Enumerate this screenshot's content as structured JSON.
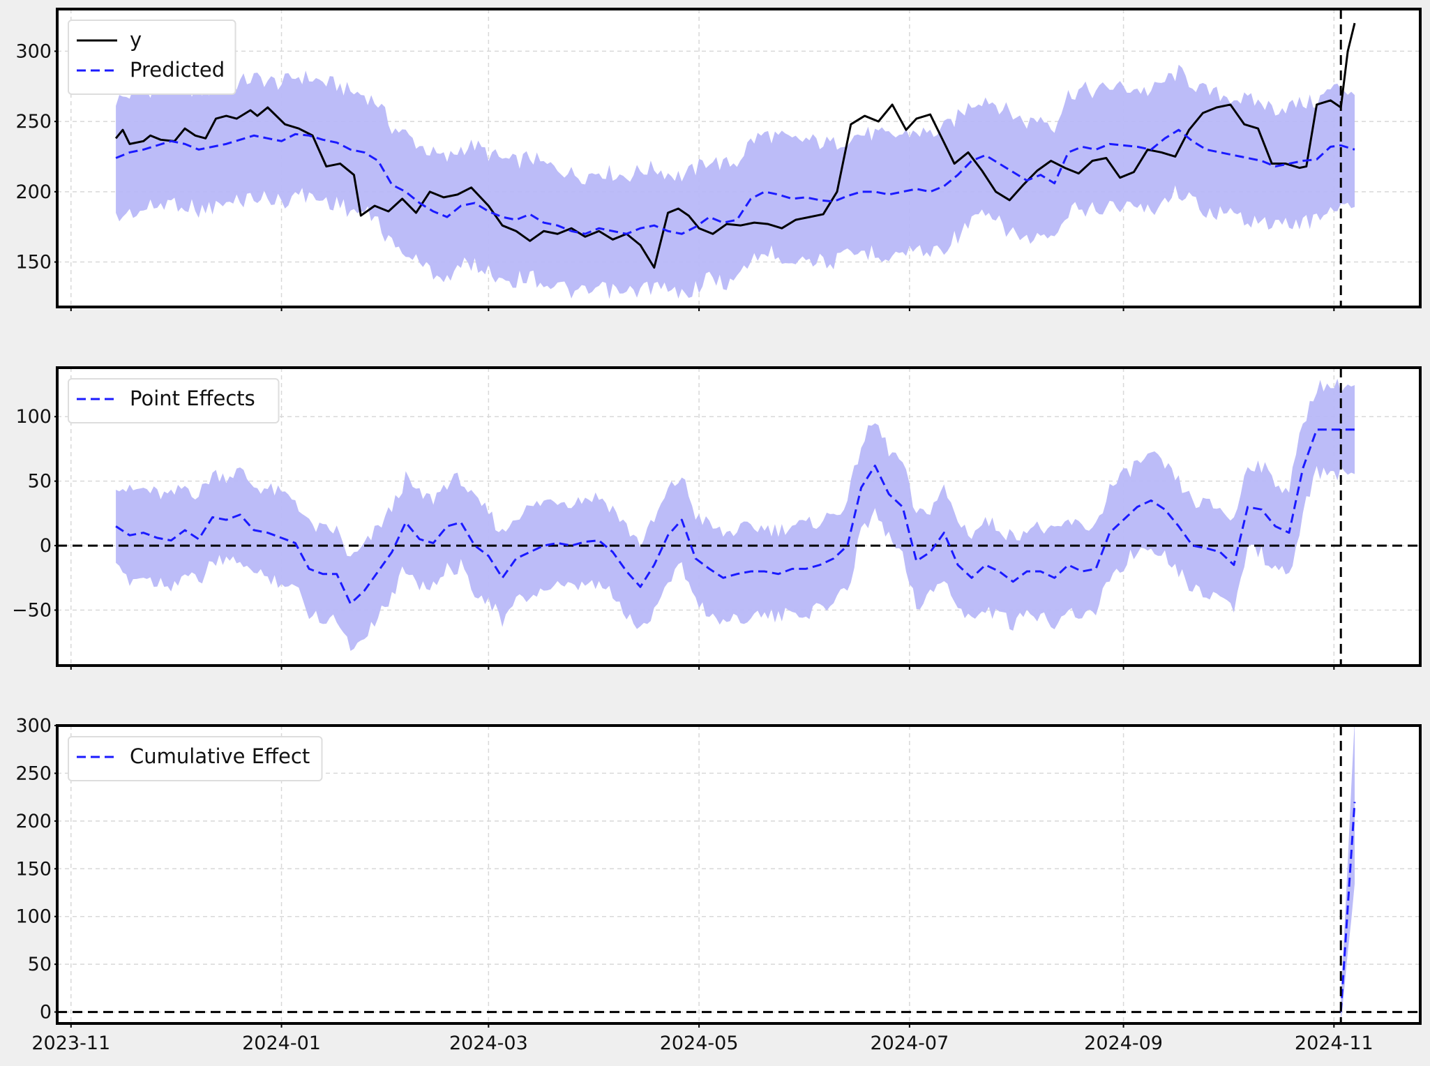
{
  "chart_data": [
    {
      "type": "line",
      "legend": {
        "placement": "top-left",
        "entries": [
          "y",
          "Predicted"
        ]
      },
      "ylim": [
        118,
        330
      ],
      "xlim": [
        "2023-10-28",
        "2024-11-26"
      ],
      "yticks": [
        150,
        200,
        250,
        300
      ],
      "grid": true,
      "intervention_date": "2024-11-03",
      "series": [
        {
          "name": "y",
          "style": "solid",
          "color": "#000000",
          "x": [
            "2023-11-14",
            "2023-11-16",
            "2023-11-18",
            "2023-11-22",
            "2023-11-24",
            "2023-11-27",
            "2023-12-01",
            "2023-12-04",
            "2023-12-07",
            "2023-12-10",
            "2023-12-13",
            "2023-12-16",
            "2023-12-19",
            "2023-12-23",
            "2023-12-25",
            "2023-12-28",
            "2024-01-02",
            "2024-01-06",
            "2024-01-10",
            "2024-01-14",
            "2024-01-18",
            "2024-01-22",
            "2024-01-24",
            "2024-01-28",
            "2024-02-01",
            "2024-02-05",
            "2024-02-09",
            "2024-02-13",
            "2024-02-17",
            "2024-02-21",
            "2024-02-25",
            "2024-03-01",
            "2024-03-05",
            "2024-03-09",
            "2024-03-13",
            "2024-03-17",
            "2024-03-21",
            "2024-03-25",
            "2024-03-29",
            "2024-04-02",
            "2024-04-06",
            "2024-04-10",
            "2024-04-14",
            "2024-04-18",
            "2024-04-22",
            "2024-04-25",
            "2024-04-28",
            "2024-05-01",
            "2024-05-05",
            "2024-05-09",
            "2024-05-13",
            "2024-05-17",
            "2024-05-21",
            "2024-05-25",
            "2024-05-29",
            "2024-06-02",
            "2024-06-06",
            "2024-06-10",
            "2024-06-14",
            "2024-06-18",
            "2024-06-22",
            "2024-06-26",
            "2024-06-30",
            "2024-07-03",
            "2024-07-07",
            "2024-07-10",
            "2024-07-14",
            "2024-07-18",
            "2024-07-22",
            "2024-07-26",
            "2024-07-30",
            "2024-08-03",
            "2024-08-07",
            "2024-08-11",
            "2024-08-15",
            "2024-08-19",
            "2024-08-23",
            "2024-08-27",
            "2024-08-31",
            "2024-09-04",
            "2024-09-08",
            "2024-09-12",
            "2024-09-16",
            "2024-09-20",
            "2024-09-24",
            "2024-09-28",
            "2024-10-02",
            "2024-10-06",
            "2024-10-10",
            "2024-10-14",
            "2024-10-18",
            "2024-10-22",
            "2024-10-24",
            "2024-10-27",
            "2024-10-31",
            "2024-11-03",
            "2024-11-05",
            "2024-11-07"
          ],
          "y": [
            238,
            244,
            234,
            236,
            240,
            237,
            236,
            245,
            240,
            238,
            252,
            254,
            252,
            258,
            254,
            260,
            248,
            245,
            240,
            218,
            220,
            212,
            183,
            190,
            186,
            195,
            185,
            200,
            196,
            198,
            203,
            190,
            176,
            172,
            165,
            172,
            170,
            174,
            168,
            172,
            166,
            170,
            162,
            146,
            185,
            188,
            183,
            174,
            170,
            177,
            176,
            178,
            177,
            174,
            180,
            182,
            184,
            200,
            248,
            254,
            250,
            262,
            244,
            252,
            255,
            240,
            220,
            228,
            215,
            200,
            194,
            205,
            215,
            222,
            217,
            213,
            222,
            224,
            210,
            214,
            230,
            228,
            225,
            244,
            256,
            260,
            262,
            248,
            245,
            220,
            220,
            217,
            218,
            262,
            265,
            260,
            300,
            320
          ]
        },
        {
          "name": "Predicted",
          "style": "dashed",
          "color": "#0000ff",
          "x": [
            "2023-11-14",
            "2023-11-18",
            "2023-11-22",
            "2023-11-26",
            "2023-11-30",
            "2023-12-04",
            "2023-12-08",
            "2023-12-12",
            "2023-12-16",
            "2023-12-20",
            "2023-12-24",
            "2023-12-28",
            "2024-01-01",
            "2024-01-05",
            "2024-01-09",
            "2024-01-13",
            "2024-01-17",
            "2024-01-21",
            "2024-01-25",
            "2024-01-29",
            "2024-02-02",
            "2024-02-06",
            "2024-02-10",
            "2024-02-14",
            "2024-02-18",
            "2024-02-22",
            "2024-02-26",
            "2024-03-01",
            "2024-03-05",
            "2024-03-09",
            "2024-03-13",
            "2024-03-17",
            "2024-03-21",
            "2024-03-25",
            "2024-03-29",
            "2024-04-02",
            "2024-04-06",
            "2024-04-10",
            "2024-04-14",
            "2024-04-18",
            "2024-04-22",
            "2024-04-26",
            "2024-04-30",
            "2024-05-04",
            "2024-05-08",
            "2024-05-12",
            "2024-05-16",
            "2024-05-20",
            "2024-05-24",
            "2024-05-28",
            "2024-06-01",
            "2024-06-05",
            "2024-06-09",
            "2024-06-13",
            "2024-06-17",
            "2024-06-21",
            "2024-06-25",
            "2024-06-29",
            "2024-07-03",
            "2024-07-07",
            "2024-07-11",
            "2024-07-15",
            "2024-07-19",
            "2024-07-23",
            "2024-07-27",
            "2024-07-31",
            "2024-08-04",
            "2024-08-08",
            "2024-08-12",
            "2024-08-16",
            "2024-08-20",
            "2024-08-24",
            "2024-08-28",
            "2024-09-01",
            "2024-09-05",
            "2024-09-09",
            "2024-09-13",
            "2024-09-17",
            "2024-09-21",
            "2024-09-25",
            "2024-09-29",
            "2024-10-03",
            "2024-10-07",
            "2024-10-11",
            "2024-10-15",
            "2024-10-19",
            "2024-10-23",
            "2024-10-27",
            "2024-10-31",
            "2024-11-03",
            "2024-11-07"
          ],
          "y": [
            224,
            228,
            230,
            233,
            236,
            234,
            230,
            232,
            234,
            237,
            240,
            238,
            236,
            241,
            240,
            237,
            235,
            230,
            228,
            222,
            205,
            200,
            192,
            186,
            182,
            190,
            192,
            186,
            182,
            180,
            184,
            178,
            176,
            172,
            170,
            174,
            172,
            170,
            174,
            176,
            172,
            170,
            175,
            182,
            178,
            180,
            195,
            200,
            198,
            195,
            196,
            194,
            193,
            197,
            200,
            200,
            198,
            200,
            202,
            200,
            204,
            212,
            222,
            226,
            220,
            214,
            208,
            212,
            206,
            228,
            232,
            230,
            234,
            233,
            232,
            230,
            238,
            244,
            236,
            230,
            228,
            226,
            224,
            222,
            218,
            220,
            222,
            223,
            232,
            233,
            230
          ]
        }
      ]
    },
    {
      "type": "line",
      "legend": {
        "placement": "top-left",
        "entries": [
          "Point Effects"
        ]
      },
      "ylim": [
        -93,
        138
      ],
      "xlim": [
        "2023-10-28",
        "2024-11-26"
      ],
      "yticks": [
        -50,
        0,
        50,
        100
      ],
      "grid": true,
      "intervention_date": "2024-11-03",
      "series": [
        {
          "name": "Point Effects",
          "style": "dashed",
          "color": "#0000ff",
          "x": [
            "2023-11-14",
            "2023-11-18",
            "2023-11-22",
            "2023-11-26",
            "2023-11-30",
            "2023-12-04",
            "2023-12-08",
            "2023-12-12",
            "2023-12-16",
            "2023-12-20",
            "2023-12-24",
            "2023-12-28",
            "2024-01-01",
            "2024-01-05",
            "2024-01-09",
            "2024-01-13",
            "2024-01-17",
            "2024-01-21",
            "2024-01-25",
            "2024-01-29",
            "2024-02-02",
            "2024-02-06",
            "2024-02-10",
            "2024-02-14",
            "2024-02-18",
            "2024-02-22",
            "2024-02-26",
            "2024-03-01",
            "2024-03-05",
            "2024-03-09",
            "2024-03-13",
            "2024-03-17",
            "2024-03-21",
            "2024-03-25",
            "2024-03-29",
            "2024-04-02",
            "2024-04-06",
            "2024-04-10",
            "2024-04-14",
            "2024-04-18",
            "2024-04-22",
            "2024-04-26",
            "2024-04-30",
            "2024-05-04",
            "2024-05-08",
            "2024-05-12",
            "2024-05-16",
            "2024-05-20",
            "2024-05-24",
            "2024-05-28",
            "2024-06-01",
            "2024-06-05",
            "2024-06-09",
            "2024-06-13",
            "2024-06-17",
            "2024-06-21",
            "2024-06-25",
            "2024-06-29",
            "2024-07-03",
            "2024-07-07",
            "2024-07-11",
            "2024-07-15",
            "2024-07-19",
            "2024-07-23",
            "2024-07-27",
            "2024-07-31",
            "2024-08-04",
            "2024-08-08",
            "2024-08-12",
            "2024-08-16",
            "2024-08-20",
            "2024-08-24",
            "2024-08-28",
            "2024-09-01",
            "2024-09-05",
            "2024-09-09",
            "2024-09-13",
            "2024-09-17",
            "2024-09-21",
            "2024-09-25",
            "2024-09-29",
            "2024-10-03",
            "2024-10-07",
            "2024-10-11",
            "2024-10-15",
            "2024-10-19",
            "2024-10-23",
            "2024-10-27",
            "2024-10-31",
            "2024-11-03",
            "2024-11-07"
          ],
          "y": [
            15,
            8,
            10,
            6,
            4,
            12,
            5,
            22,
            20,
            24,
            12,
            10,
            6,
            2,
            -18,
            -22,
            -22,
            -45,
            -35,
            -20,
            -5,
            18,
            5,
            2,
            15,
            18,
            0,
            -8,
            -25,
            -10,
            -5,
            0,
            2,
            0,
            3,
            4,
            -5,
            -20,
            -32,
            -15,
            8,
            20,
            -10,
            -18,
            -25,
            -22,
            -20,
            -20,
            -22,
            -18,
            -18,
            -15,
            -10,
            0,
            45,
            62,
            40,
            30,
            -12,
            -5,
            10,
            -15,
            -25,
            -15,
            -20,
            -28,
            -20,
            -20,
            -25,
            -15,
            -20,
            -18,
            10,
            20,
            30,
            35,
            28,
            15,
            0,
            -2,
            -5,
            -15,
            30,
            28,
            15,
            10,
            60,
            90,
            90,
            90,
            90
          ]
        }
      ],
      "reference_line": 0
    },
    {
      "type": "line",
      "legend": {
        "placement": "top-left",
        "entries": [
          "Cumulative Effect"
        ]
      },
      "ylim": [
        -12,
        300
      ],
      "xlim": [
        "2023-10-28",
        "2024-11-26"
      ],
      "yticks": [
        0,
        50,
        100,
        150,
        200,
        250,
        300
      ],
      "grid": true,
      "intervention_date": "2024-11-03",
      "series": [
        {
          "name": "Cumulative Effect",
          "style": "dashed",
          "color": "#0000ff",
          "x": [
            "2024-11-03",
            "2024-11-05",
            "2024-11-07"
          ],
          "y": [
            0,
            110,
            220
          ]
        }
      ],
      "reference_line": 0
    }
  ],
  "x_tick_labels": [
    "2023-11",
    "2024-01",
    "2024-03",
    "2024-05",
    "2024-07",
    "2024-09",
    "2024-11"
  ],
  "colors": {
    "observed": "#000000",
    "predicted": "#1a1aff",
    "band": "#b8b8f8",
    "background": "#efefef",
    "plot_bg": "#ffffff"
  }
}
